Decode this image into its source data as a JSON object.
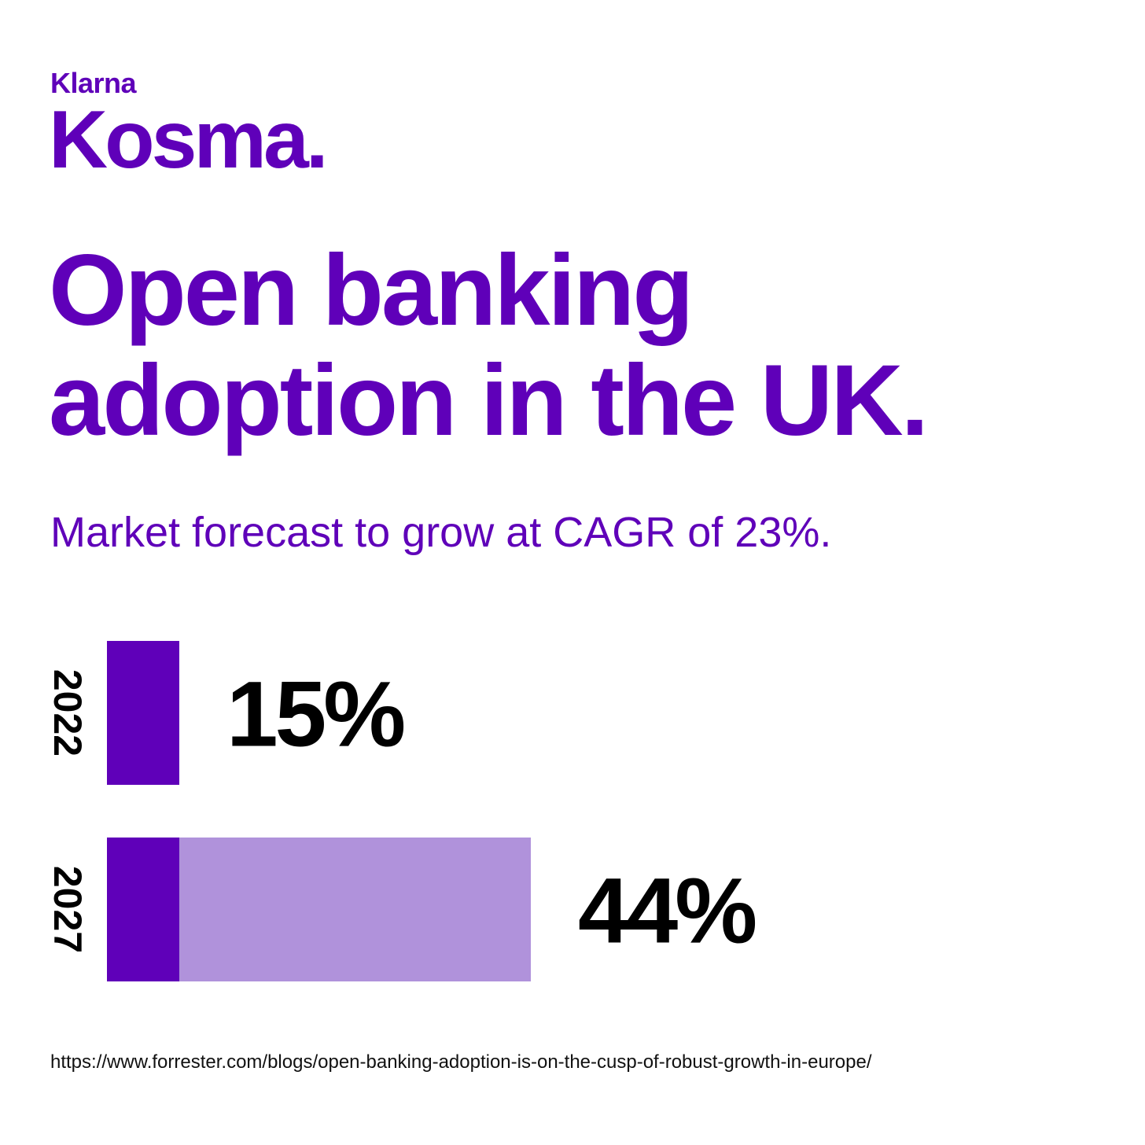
{
  "brand": {
    "parent": "Klarna",
    "name": "Kosma."
  },
  "title_line1": "Open banking",
  "title_line2": "adoption in the UK.",
  "subtitle": "Market forecast to grow at CAGR of 23%.",
  "source_url": "https://www.forrester.com/blogs/open-banking-adoption-is-on-the-cusp-of-robust-growth-in-europe/",
  "colors": {
    "brand_purple": "#5f00b9",
    "light_purple": "#b092db",
    "value_text": "#000000"
  },
  "chart_data": {
    "type": "bar",
    "orientation": "horizontal",
    "categories": [
      "2022",
      "2027"
    ],
    "values": [
      15,
      44
    ],
    "value_labels": [
      "15%",
      "44%"
    ],
    "baseline_value": 15,
    "unit": "%",
    "title": "",
    "xlabel": "",
    "ylabel": "",
    "grid": false,
    "legend": "none"
  }
}
